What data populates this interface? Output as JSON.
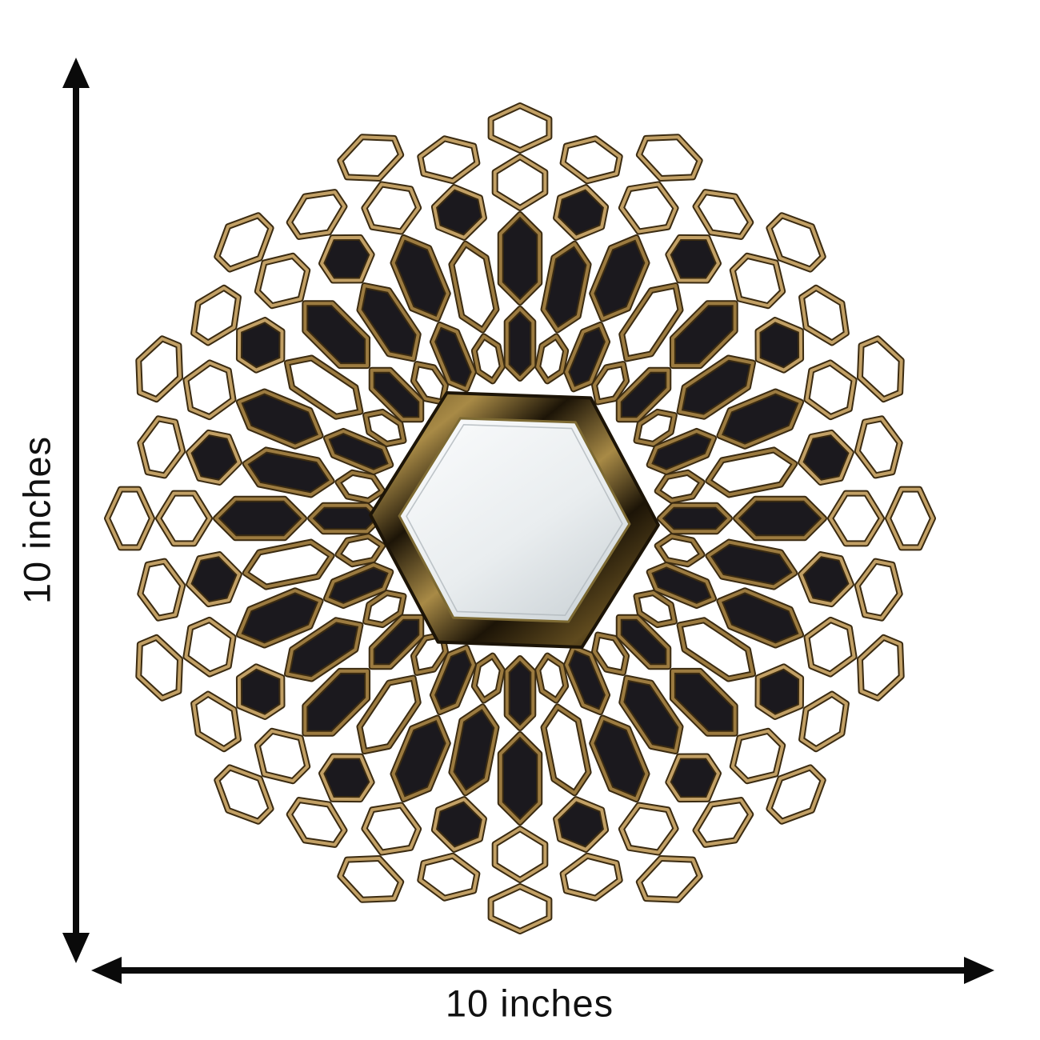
{
  "figure": {
    "subject": "Sunburst honeycomb wall mirror",
    "dimensions": {
      "height_label": "10 inches",
      "width_label": "10 inches"
    },
    "colors": {
      "background": "#ffffff",
      "arrow": "#0a0a0a",
      "text": "#111111",
      "bronze_light": "#c2a065",
      "bronze_mid": "#9c7b40",
      "bronze_dark": "#3b2b11",
      "cell_black": "#1b191e",
      "cell_open": "#ffffff",
      "frame_dark": "#1c1407",
      "frame_gold": "#a88a46",
      "frame_mid": "#5f4a1e",
      "mirror_white": "#fbfcfd",
      "mirror_mid": "#e9edef",
      "mirror_gray": "#ccd3d7",
      "mirror_edge": "#7d6a33"
    }
  }
}
